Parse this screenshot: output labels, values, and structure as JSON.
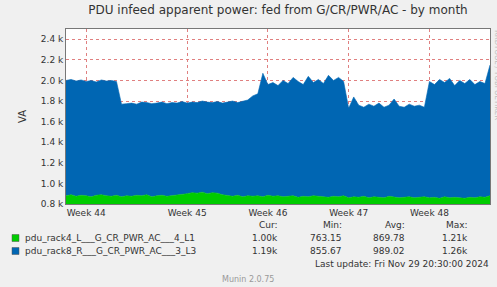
{
  "chart_data": {
    "type": "area",
    "stacked": true,
    "title": "PDU infeed apparent power: fed from G/CR/PWR/AC - by month",
    "y_label": "VA",
    "grid": true,
    "categories": [
      null,
      null,
      null,
      null,
      "Week 44",
      null,
      null,
      null,
      null,
      null,
      null,
      null,
      null,
      null,
      null,
      null,
      null,
      null,
      null,
      null,
      null,
      null,
      null,
      null,
      "Week 45",
      null,
      null,
      null,
      null,
      null,
      null,
      null,
      null,
      null,
      null,
      null,
      null,
      null,
      null,
      null,
      "Week 46",
      null,
      null,
      null,
      null,
      null,
      null,
      null,
      null,
      null,
      null,
      null,
      null,
      null,
      null,
      null,
      "Week 47",
      null,
      null,
      null,
      null,
      null,
      null,
      null,
      null,
      null,
      null,
      null,
      null,
      null,
      null,
      null,
      "Week 48",
      null,
      null,
      null,
      null,
      null,
      null,
      null,
      null,
      null,
      null,
      null,
      null
    ],
    "ylim": [
      800,
      2500
    ],
    "yticks": [
      {
        "value": 800,
        "label": "0.8 k"
      },
      {
        "value": 1000,
        "label": "1.0 k"
      },
      {
        "value": 1200,
        "label": "1.2 k"
      },
      {
        "value": 1400,
        "label": "1.4 k"
      },
      {
        "value": 1600,
        "label": "1.6 k"
      },
      {
        "value": 1800,
        "label": "1.8 k"
      },
      {
        "value": 2000,
        "label": "2.0 k"
      },
      {
        "value": 2200,
        "label": "2.2 k"
      },
      {
        "value": 2400,
        "label": "2.4 k"
      }
    ],
    "stats_header": [
      "Cur:",
      "Min:",
      "Avg:",
      "Max:"
    ],
    "series": [
      {
        "name": "pdu_rack4_L___G_CR_PWR_AC___4_L1",
        "color": "#00cc00",
        "stats": [
          "1.00k",
          "763.15",
          "869.78",
          "1.21k"
        ],
        "values": [
          880,
          890,
          875,
          885,
          880,
          870,
          885,
          890,
          880,
          875,
          885,
          870,
          880,
          875,
          885,
          880,
          890,
          870,
          880,
          885,
          875,
          880,
          890,
          895,
          900,
          910,
          905,
          915,
          900,
          910,
          905,
          890,
          880,
          875,
          885,
          870,
          880,
          875,
          880,
          870,
          885,
          875,
          880,
          870,
          875,
          880,
          865,
          875,
          870,
          880,
          875,
          870,
          865,
          875,
          870,
          880,
          860,
          870,
          865,
          875,
          860,
          870,
          865,
          860,
          875,
          870,
          860,
          865,
          870,
          860,
          865,
          870,
          860,
          865,
          855,
          870,
          860,
          865,
          860,
          855,
          865,
          860,
          870,
          865,
          880
        ]
      },
      {
        "name": "pdu_rack8_R___G_CR_PWR_AC___3_L3",
        "color": "#0066b3",
        "stats": [
          "1.19k",
          "855.67",
          "989.02",
          "1.26k"
        ],
        "values": [
          1120,
          1120,
          1120,
          1120,
          1110,
          1130,
          1100,
          1115,
          1115,
          1125,
          1105,
          900,
          895,
          905,
          885,
          910,
          895,
          905,
          900,
          905,
          900,
          905,
          890,
          900,
          880,
          880,
          880,
          885,
          890,
          875,
          890,
          890,
          910,
          925,
          900,
          925,
          930,
          975,
          990,
          1200,
          1075,
          1105,
          1070,
          1130,
          1095,
          1150,
          1125,
          1085,
          1170,
          1100,
          1135,
          1100,
          1185,
          1125,
          1160,
          1110,
          870,
          970,
          895,
          865,
          910,
          880,
          915,
          880,
          885,
          950,
          890,
          875,
          900,
          890,
          895,
          870,
          1130,
          1095,
          1155,
          1110,
          1160,
          1085,
          1140,
          1115,
          1145,
          1100,
          1120,
          1105,
          1270
        ]
      }
    ],
    "annotations": [
      "Last update: Fri Nov 29 20:30:00 2024",
      "Munin 2.0.75",
      "RRDTOOL / TOBI OETIKER"
    ]
  }
}
